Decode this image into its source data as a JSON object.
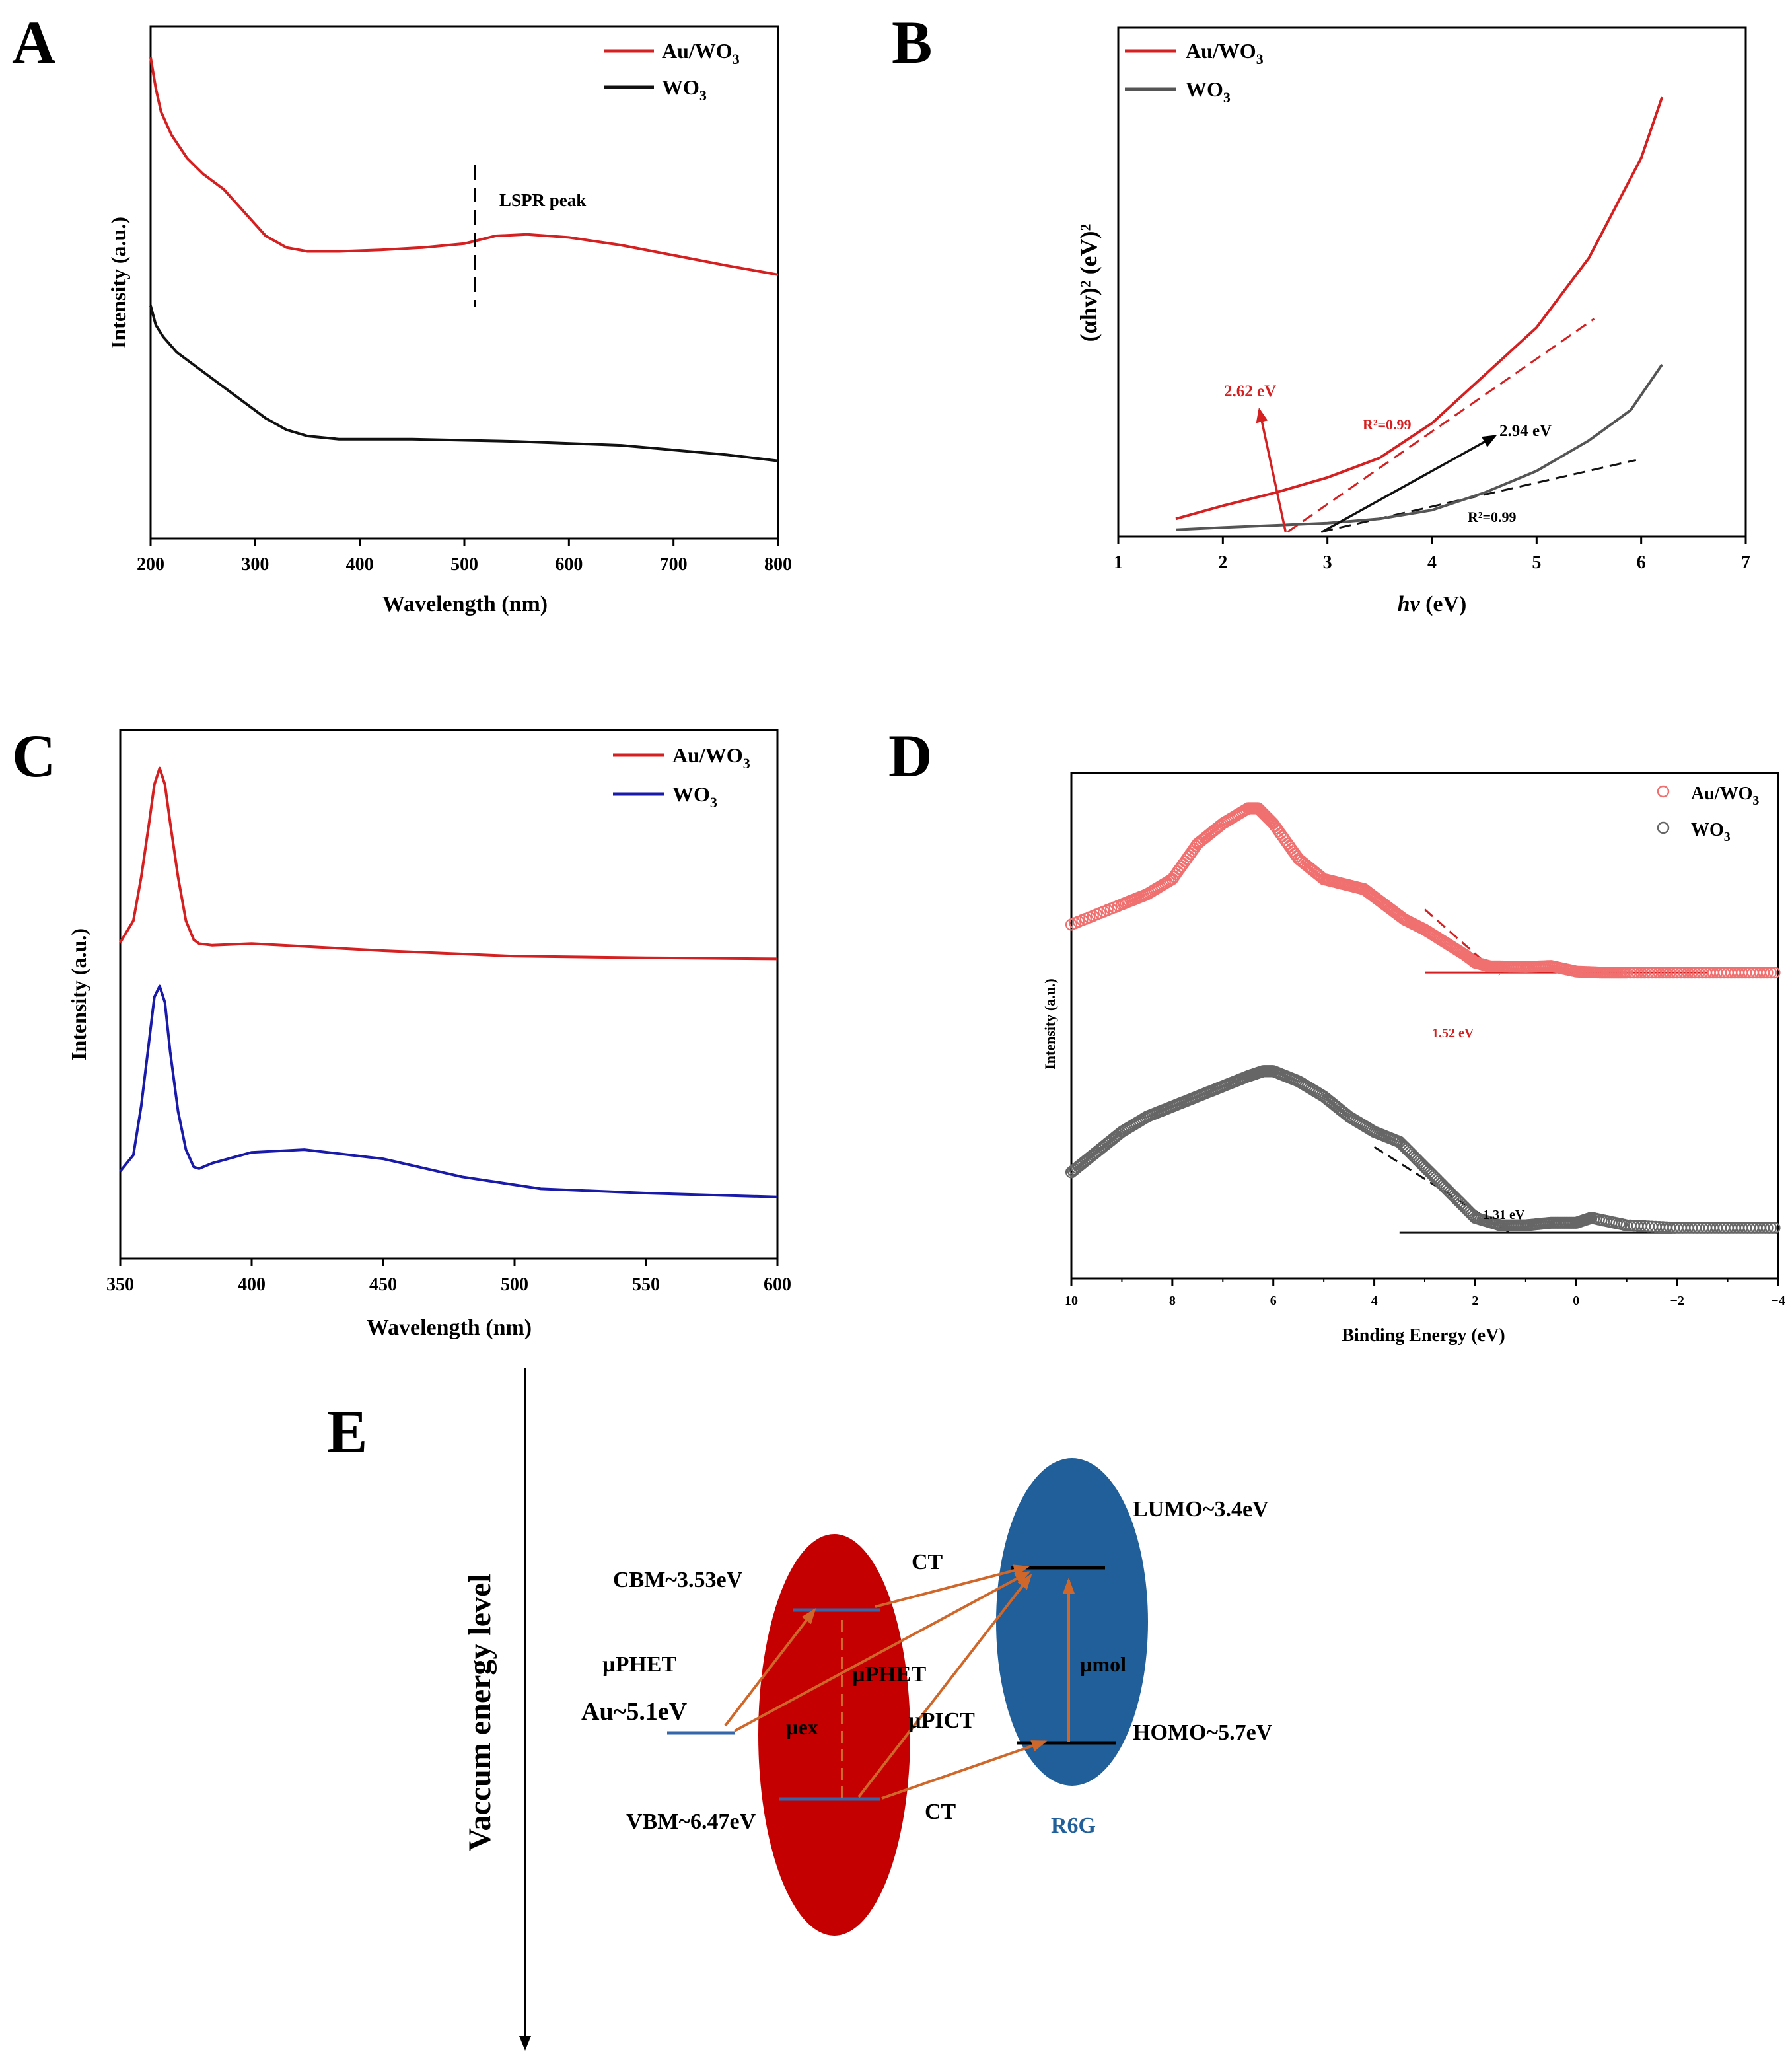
{
  "panels": {
    "A": {
      "label": "A"
    },
    "B": {
      "label": "B"
    },
    "C": {
      "label": "C"
    },
    "D": {
      "label": "D"
    },
    "E": {
      "label": "E"
    }
  },
  "colors": {
    "red": "#d42020",
    "black": "#111111",
    "grey": "#555555",
    "blue": "#1a1aaa",
    "wo3_fill": "#c40000",
    "r6g_fill": "#205f99",
    "orange": "#d0672a",
    "level_blue": "#3366aa"
  },
  "chart_data": [
    {
      "panel": "A",
      "type": "line",
      "title": "",
      "xlabel": "Wavelength (nm)",
      "ylabel": "Intensity (a.u.)",
      "xlim": [
        200,
        800
      ],
      "ylim": [
        0,
        1
      ],
      "xticks": [
        200,
        300,
        400,
        500,
        600,
        700,
        800
      ],
      "legend": {
        "placement": "top-right",
        "entries": [
          {
            "base": "Au/WO",
            "sub": "3"
          },
          {
            "base": "WO",
            "sub": "3"
          }
        ]
      },
      "annotation": "LSPR peak",
      "annotation_x": 510,
      "series": [
        {
          "name": "Au/WO3",
          "x": [
            200,
            205,
            210,
            220,
            235,
            250,
            270,
            290,
            310,
            330,
            350,
            380,
            420,
            460,
            500,
            530,
            560,
            600,
            650,
            700,
            750,
            800
          ],
          "y": [
            0.92,
            0.88,
            0.85,
            0.82,
            0.79,
            0.77,
            0.75,
            0.72,
            0.69,
            0.675,
            0.67,
            0.67,
            0.672,
            0.675,
            0.68,
            0.69,
            0.692,
            0.688,
            0.678,
            0.665,
            0.652,
            0.64
          ]
        },
        {
          "name": "WO3",
          "x": [
            200,
            205,
            212,
            225,
            245,
            270,
            290,
            310,
            330,
            350,
            380,
            450,
            550,
            650,
            750,
            800
          ],
          "y": [
            0.6,
            0.575,
            0.56,
            0.54,
            0.52,
            0.495,
            0.475,
            0.455,
            0.44,
            0.432,
            0.428,
            0.428,
            0.425,
            0.42,
            0.408,
            0.4
          ]
        }
      ]
    },
    {
      "panel": "B",
      "type": "line",
      "title": "",
      "xlabel_italic": "hv",
      "xlabel_rest": " (eV)",
      "ylabel": "(αhv)² (eV)²",
      "xlim": [
        1,
        7
      ],
      "ylim": [
        0,
        1
      ],
      "xticks": [
        1,
        2,
        3,
        4,
        5,
        6,
        7
      ],
      "legend": {
        "placement": "top-left",
        "entries": [
          {
            "base": "Au/WO",
            "sub": "3"
          },
          {
            "base": "WO",
            "sub": "3"
          }
        ]
      },
      "annotations": {
        "au_gap": "2.62 eV",
        "au_r2": "R²=0.99",
        "wo3_gap": "2.94 eV",
        "wo3_r2": "R²=0.99"
      },
      "series": [
        {
          "name": "Au/WO3",
          "x": [
            1.55,
            2,
            2.5,
            3,
            3.5,
            4,
            4.5,
            5,
            5.5,
            6,
            6.2
          ],
          "y": [
            0.03,
            0.06,
            0.09,
            0.125,
            0.17,
            0.25,
            0.36,
            0.47,
            0.63,
            0.86,
            1.0
          ]
        },
        {
          "name": "WO3",
          "x": [
            1.55,
            2,
            2.5,
            3,
            3.5,
            4,
            4.5,
            5,
            5.5,
            5.9,
            6.2
          ],
          "y": [
            0.005,
            0.01,
            0.015,
            0.02,
            0.03,
            0.05,
            0.09,
            0.14,
            0.21,
            0.28,
            0.385
          ]
        }
      ],
      "fits": [
        {
          "name": "Au/WO3 fit",
          "x": [
            2.62,
            5.55
          ],
          "y": [
            0.0,
            0.49
          ]
        },
        {
          "name": "WO3 fit",
          "x": [
            2.94,
            5.95
          ],
          "y": [
            0.0,
            0.165
          ]
        }
      ],
      "arrows": [
        {
          "name": "Au/WO3 gap arrow",
          "from": [
            2.6,
            0.0
          ],
          "to": [
            2.35,
            0.28
          ]
        },
        {
          "name": "WO3 gap arrow",
          "from": [
            2.95,
            0.0
          ],
          "to": [
            4.6,
            0.22
          ]
        }
      ]
    },
    {
      "panel": "C",
      "type": "line",
      "title": "",
      "xlabel": "Wavelength (nm)",
      "ylabel": "Intensity (a.u.)",
      "xlim": [
        350,
        600
      ],
      "ylim": [
        0,
        1
      ],
      "xticks": [
        350,
        400,
        450,
        500,
        550,
        600
      ],
      "legend": {
        "placement": "top-right",
        "entries": [
          {
            "base": "Au/WO",
            "sub": "3"
          },
          {
            "base": "WO",
            "sub": "3"
          }
        ]
      },
      "series": [
        {
          "name": "Au/WO3",
          "x": [
            350,
            355,
            358,
            361,
            363,
            365,
            367,
            369,
            372,
            375,
            378,
            380,
            385,
            400,
            450,
            500,
            550,
            600
          ],
          "y": [
            0.58,
            0.62,
            0.7,
            0.8,
            0.87,
            0.9,
            0.87,
            0.8,
            0.7,
            0.62,
            0.585,
            0.578,
            0.575,
            0.578,
            0.565,
            0.555,
            0.552,
            0.55
          ]
        },
        {
          "name": "WO3",
          "x": [
            350,
            355,
            358,
            361,
            363,
            365,
            367,
            369,
            372,
            375,
            378,
            380,
            385,
            400,
            420,
            450,
            480,
            510,
            550,
            600
          ],
          "y": [
            0.16,
            0.19,
            0.28,
            0.4,
            0.48,
            0.5,
            0.47,
            0.38,
            0.27,
            0.2,
            0.168,
            0.165,
            0.175,
            0.195,
            0.2,
            0.183,
            0.15,
            0.128,
            0.12,
            0.113
          ]
        }
      ]
    },
    {
      "panel": "D",
      "type": "scatter",
      "title": "",
      "xlabel": "Binding Energy (eV)",
      "ylabel": "Intensity (a.u.)",
      "xlim": [
        10,
        -4
      ],
      "ylim": [
        0,
        1
      ],
      "xticks": [
        10,
        8,
        6,
        4,
        2,
        0,
        -2,
        -4
      ],
      "xtick_labels": [
        "10",
        "8",
        "6",
        "4",
        "2",
        "0",
        "−2",
        "−4"
      ],
      "legend": {
        "placement": "top-right",
        "entries": [
          {
            "base": "Au/WO",
            "sub": "3"
          },
          {
            "base": "WO",
            "sub": "3"
          }
        ]
      },
      "annotations": {
        "au_vbm": "1.52 eV",
        "wo3_vbm": "1.31 eV"
      },
      "series": [
        {
          "name": "Au/WO3",
          "x": [
            10,
            9,
            8.5,
            8,
            7.5,
            7,
            6.5,
            6.3,
            6,
            5.5,
            5,
            4.6,
            4.2,
            3.8,
            3.4,
            3,
            2.6,
            2.2,
            2,
            1.7,
            1.5,
            1,
            0.5,
            0,
            -0.5,
            -1,
            -2,
            -3,
            -4
          ],
          "y": [
            0.7,
            0.74,
            0.76,
            0.79,
            0.86,
            0.9,
            0.93,
            0.93,
            0.9,
            0.83,
            0.79,
            0.78,
            0.77,
            0.74,
            0.71,
            0.69,
            0.665,
            0.64,
            0.625,
            0.617,
            0.617,
            0.616,
            0.618,
            0.607,
            0.605,
            0.605,
            0.605,
            0.605,
            0.605
          ]
        },
        {
          "name": "WO3",
          "x": [
            10,
            9.5,
            9,
            8.5,
            8,
            7.5,
            7,
            6.5,
            6.2,
            6,
            5.5,
            5,
            4.5,
            4,
            3.5,
            3,
            2.5,
            2,
            1.5,
            1,
            0.5,
            0,
            -0.3,
            -1,
            -2,
            -3,
            -4
          ],
          "y": [
            0.21,
            0.25,
            0.29,
            0.32,
            0.34,
            0.36,
            0.38,
            0.4,
            0.41,
            0.41,
            0.39,
            0.36,
            0.32,
            0.29,
            0.27,
            0.22,
            0.17,
            0.12,
            0.105,
            0.105,
            0.11,
            0.11,
            0.12,
            0.105,
            0.1,
            0.1,
            0.1
          ]
        }
      ],
      "baselines": [
        {
          "name": "Au/WO3 baseline",
          "x": [
            3,
            -2.6
          ],
          "y": [
            0.605,
            0.605
          ]
        },
        {
          "name": "WO3 baseline",
          "x": [
            3.5,
            -4
          ],
          "y": [
            0.09,
            0.09
          ]
        }
      ],
      "fits": [
        {
          "name": "Au/WO3 fit",
          "x": [
            3.0,
            1.52
          ],
          "y": [
            0.73,
            0.6
          ]
        },
        {
          "name": "WO3 fit",
          "x": [
            4.0,
            1.31
          ],
          "y": [
            0.26,
            0.09
          ]
        }
      ]
    }
  ],
  "diagram_E": {
    "axis_label": "Vaccum energy level",
    "wo3": {
      "name": "WO",
      "sub": "3"
    },
    "r6g": {
      "name": "R6G"
    },
    "levels": {
      "cbm": "CBM~3.53eV",
      "vbm": "VBM~6.47eV",
      "au": "Au~5.1eV",
      "lumo": "LUMO~3.4eV",
      "homo": "HOMO~5.7eV"
    },
    "processes": {
      "phet_left": "µPHET",
      "phet_mid": "µPHET",
      "ex": "µex",
      "pict": "µPICT",
      "mol": "µmol",
      "ct_top": "CT",
      "ct_bottom": "CT"
    }
  }
}
